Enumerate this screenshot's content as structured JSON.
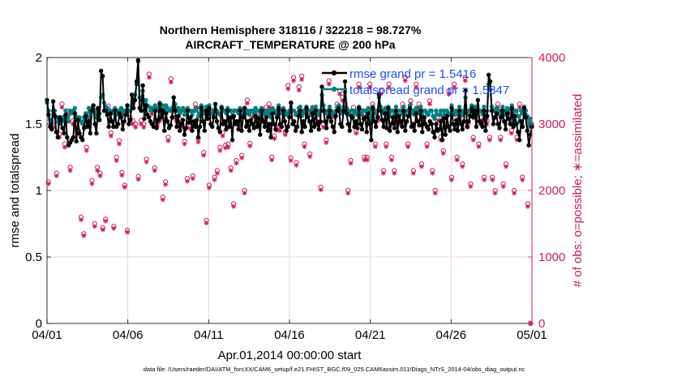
{
  "chart_data": {
    "type": "line",
    "title_line1": "Northern Hemisphere 318116 / 322218 = 98.727%",
    "title_line2": "AIRCRAFT_TEMPERATURE @ 200 hPa",
    "xlabel": "Apr.01,2014 00:00:00 start",
    "ylabel_left": "rmse and totalspread",
    "ylabel_right": "# of obs: o=possible; ∗=assimilated",
    "footer": "data file: /Users/raeder/DAI/ATM_forcXX/CAM6_setup/f.e21.FHIST_BGC.f09_025.CAM6assim.011/Diags_NTrS_2014-04/obs_diag_output.nc",
    "xlim": [
      0,
      30
    ],
    "ylim_left": [
      0,
      2
    ],
    "ylim_right": [
      0,
      4000
    ],
    "x_ticks": [
      {
        "v": 0,
        "label": "04/01"
      },
      {
        "v": 5,
        "label": "04/06"
      },
      {
        "v": 10,
        "label": "04/11"
      },
      {
        "v": 15,
        "label": "04/16"
      },
      {
        "v": 20,
        "label": "04/21"
      },
      {
        "v": 25,
        "label": "04/26"
      },
      {
        "v": 30,
        "label": "05/01"
      }
    ],
    "y_ticks_left": [
      {
        "v": 0,
        "label": "0"
      },
      {
        "v": 0.5,
        "label": "0.5"
      },
      {
        "v": 1,
        "label": "1"
      },
      {
        "v": 1.5,
        "label": "1.5"
      },
      {
        "v": 2,
        "label": "2"
      }
    ],
    "y_ticks_right": [
      {
        "v": 0,
        "label": "0"
      },
      {
        "v": 1000,
        "label": "1000"
      },
      {
        "v": 2000,
        "label": "2000"
      },
      {
        "v": 3000,
        "label": "3000"
      },
      {
        "v": 4000,
        "label": "4000"
      }
    ],
    "legend": [
      {
        "name": "rmse grand pr = 1.5416",
        "color": "#000000"
      },
      {
        "name": "totalspread grand pr = 1.5847",
        "color": "#008080"
      }
    ],
    "legend_text_color": "#1f4ff0",
    "colors": {
      "rmse": "#000000",
      "spread": "#008080",
      "obs": "#cc1a5c",
      "grid": "#e8c8d0"
    },
    "rmse": [
      1.68,
      1.57,
      1.48,
      1.46,
      1.67,
      1.56,
      1.44,
      1.4,
      1.55,
      1.53,
      1.47,
      1.43,
      1.57,
      1.4,
      1.34,
      1.36,
      1.38,
      1.4,
      1.58,
      1.37,
      1.53,
      1.43,
      1.4,
      1.38,
      1.47,
      1.56,
      1.48,
      1.52,
      1.43,
      1.6,
      1.64,
      1.5,
      1.43,
      1.62,
      1.53,
      1.9,
      1.86,
      1.6,
      1.6,
      1.57,
      1.48,
      1.58,
      1.52,
      1.48,
      1.6,
      1.48,
      1.5,
      1.58,
      1.55,
      1.46,
      1.52,
      1.57,
      1.64,
      1.5,
      1.53,
      1.72,
      1.62,
      1.68,
      1.82,
      1.98,
      1.62,
      1.6,
      1.79,
      1.54,
      1.64,
      1.57,
      1.55,
      1.52,
      1.5,
      1.48,
      1.6,
      1.47,
      1.53,
      1.65,
      1.55,
      1.6,
      1.45,
      1.58,
      1.52,
      1.47,
      1.49,
      1.55,
      1.7,
      1.6,
      1.48,
      1.56,
      1.45,
      1.5,
      1.53,
      1.42,
      1.47,
      1.6,
      1.51,
      1.55,
      1.45,
      1.52,
      1.48,
      1.53,
      1.4,
      1.48,
      1.62,
      1.52,
      1.45,
      1.6,
      1.54,
      1.62,
      1.5,
      1.48,
      1.55,
      1.65,
      1.52,
      1.47,
      1.44,
      1.62,
      1.5,
      1.52,
      1.46,
      1.6,
      1.48,
      1.55,
      1.38,
      1.56,
      1.5,
      1.52,
      1.46,
      1.6,
      1.45,
      1.55,
      1.62,
      1.48,
      1.52,
      1.45,
      1.53,
      1.5,
      1.47,
      1.56,
      1.48,
      1.54,
      1.42,
      1.6,
      1.52,
      1.48,
      1.55,
      1.45,
      1.5,
      1.4,
      1.58,
      1.5,
      1.46,
      1.55,
      1.62,
      1.5,
      1.48,
      1.6,
      1.52,
      1.45,
      1.48,
      1.55,
      1.66,
      1.5,
      1.52,
      1.45,
      1.48,
      1.56,
      1.6,
      1.44,
      1.52,
      1.48,
      1.62,
      1.55,
      1.52,
      1.45,
      1.58,
      1.48,
      1.6,
      1.5,
      1.46,
      1.52,
      1.78,
      1.6,
      1.52,
      1.47,
      1.55,
      1.6,
      1.52,
      1.48,
      1.44,
      1.56,
      1.6,
      1.62,
      1.5,
      1.48,
      1.6,
      1.82,
      1.58,
      1.5,
      1.45,
      1.56,
      1.55,
      1.48,
      1.52,
      1.47,
      1.62,
      1.5,
      1.46,
      1.54,
      1.55,
      1.44,
      1.58,
      1.5,
      1.38,
      1.62,
      1.52,
      1.48,
      1.55,
      1.72,
      1.6,
      1.53,
      1.48,
      1.58,
      1.47,
      1.62,
      1.45,
      1.5,
      1.55,
      1.47,
      1.6,
      1.44,
      1.56,
      1.52,
      1.48,
      1.6,
      1.45,
      1.52,
      1.56,
      1.62,
      1.48,
      1.5,
      1.45,
      1.58,
      1.52,
      1.49,
      1.6,
      1.44,
      1.55,
      1.5,
      1.48,
      1.46,
      1.52,
      1.5,
      1.44,
      1.4,
      1.5,
      1.45,
      1.46,
      1.52,
      1.38,
      1.54,
      1.42,
      1.56,
      1.48,
      1.45,
      1.62,
      1.5,
      1.46,
      1.53,
      1.45,
      1.6,
      1.5,
      1.46,
      1.52,
      1.75,
      1.48,
      1.52,
      1.56,
      1.62,
      1.55,
      1.6,
      1.48,
      1.68,
      1.52,
      1.5,
      1.48,
      1.6,
      1.45,
      1.56,
      1.87,
      1.82,
      1.6,
      1.5,
      1.55,
      1.58,
      1.5,
      1.47,
      1.55,
      1.6,
      1.52,
      1.46,
      1.58,
      1.54,
      1.5,
      1.62,
      1.48,
      1.56,
      1.5,
      1.44,
      1.38,
      1.52,
      1.48,
      1.62,
      1.55,
      1.45,
      1.34,
      1.42,
      1.48
    ],
    "spread": [
      1.66,
      1.6,
      1.53,
      1.5,
      1.6,
      1.6,
      1.55,
      1.52,
      1.5,
      1.55,
      1.55,
      1.52,
      1.6,
      1.55,
      1.52,
      1.6,
      1.58,
      1.6,
      1.62,
      1.55,
      1.55,
      1.55,
      1.52,
      1.5,
      1.55,
      1.58,
      1.55,
      1.62,
      1.55,
      1.62,
      1.64,
      1.6,
      1.55,
      1.62,
      1.58,
      1.7,
      1.72,
      1.66,
      1.63,
      1.62,
      1.58,
      1.6,
      1.58,
      1.6,
      1.62,
      1.57,
      1.6,
      1.6,
      1.62,
      1.57,
      1.6,
      1.6,
      1.64,
      1.6,
      1.6,
      1.72,
      1.7,
      1.72,
      1.8,
      1.97,
      1.7,
      1.68,
      1.75,
      1.65,
      1.68,
      1.64,
      1.63,
      1.6,
      1.62,
      1.6,
      1.64,
      1.6,
      1.62,
      1.66,
      1.62,
      1.64,
      1.6,
      1.64,
      1.62,
      1.6,
      1.6,
      1.62,
      1.7,
      1.65,
      1.6,
      1.62,
      1.58,
      1.6,
      1.62,
      1.57,
      1.6,
      1.62,
      1.6,
      1.6,
      1.57,
      1.6,
      1.6,
      1.62,
      1.56,
      1.58,
      1.64,
      1.6,
      1.58,
      1.63,
      1.6,
      1.64,
      1.6,
      1.58,
      1.6,
      1.65,
      1.6,
      1.58,
      1.57,
      1.63,
      1.6,
      1.6,
      1.58,
      1.62,
      1.6,
      1.6,
      1.55,
      1.6,
      1.6,
      1.6,
      1.58,
      1.62,
      1.57,
      1.6,
      1.62,
      1.58,
      1.6,
      1.57,
      1.6,
      1.6,
      1.58,
      1.62,
      1.6,
      1.6,
      1.56,
      1.62,
      1.6,
      1.58,
      1.6,
      1.57,
      1.6,
      1.55,
      1.62,
      1.6,
      1.58,
      1.6,
      1.64,
      1.6,
      1.58,
      1.62,
      1.6,
      1.57,
      1.58,
      1.6,
      1.66,
      1.6,
      1.6,
      1.57,
      1.58,
      1.62,
      1.63,
      1.56,
      1.6,
      1.58,
      1.63,
      1.6,
      1.6,
      1.57,
      1.62,
      1.58,
      1.63,
      1.6,
      1.57,
      1.6,
      1.72,
      1.64,
      1.6,
      1.58,
      1.6,
      1.63,
      1.6,
      1.58,
      1.56,
      1.6,
      1.63,
      1.64,
      1.6,
      1.58,
      1.63,
      1.74,
      1.62,
      1.6,
      1.57,
      1.6,
      1.6,
      1.58,
      1.6,
      1.57,
      1.63,
      1.6,
      1.57,
      1.6,
      1.6,
      1.56,
      1.62,
      1.6,
      1.52,
      1.63,
      1.6,
      1.58,
      1.6,
      1.7,
      1.63,
      1.6,
      1.58,
      1.62,
      1.57,
      1.63,
      1.56,
      1.6,
      1.6,
      1.57,
      1.63,
      1.56,
      1.6,
      1.6,
      1.58,
      1.63,
      1.57,
      1.6,
      1.6,
      1.64,
      1.58,
      1.6,
      1.57,
      1.62,
      1.6,
      1.58,
      1.63,
      1.56,
      1.6,
      1.6,
      1.58,
      1.57,
      1.6,
      1.6,
      1.56,
      1.54,
      1.6,
      1.57,
      1.57,
      1.6,
      1.53,
      1.6,
      1.55,
      1.6,
      1.58,
      1.57,
      1.64,
      1.6,
      1.57,
      1.6,
      1.57,
      1.63,
      1.6,
      1.57,
      1.6,
      1.7,
      1.58,
      1.6,
      1.6,
      1.64,
      1.6,
      1.63,
      1.58,
      1.68,
      1.6,
      1.6,
      1.58,
      1.63,
      1.56,
      1.6,
      1.8,
      1.76,
      1.63,
      1.6,
      1.6,
      1.62,
      1.6,
      1.57,
      1.6,
      1.63,
      1.6,
      1.57,
      1.62,
      1.6,
      1.6,
      1.64,
      1.58,
      1.6,
      1.6,
      1.56,
      1.52,
      1.6,
      1.58,
      1.63,
      1.6,
      1.56,
      1.48,
      1.54,
      1.5
    ],
    "obs_possible": [
      2130,
      3050,
      2990,
      2260,
      2850,
      3300,
      2700,
      3200,
      2350,
      3050,
      3100,
      2900,
      1600,
      1350,
      2650,
      3150,
      2150,
      1500,
      2350,
      2260,
      1440,
      1570,
      3270,
      2870,
      1460,
      2500,
      2750,
      2270,
      2080,
      1400,
      3100,
      3050,
      3000,
      2210,
      3050,
      3000,
      2470,
      3750,
      3200,
      2340,
      3020,
      3100,
      1900,
      2130,
      2800,
      3680,
      3150,
      3100,
      3080,
      3000,
      2740,
      2180,
      2980,
      2220,
      3300,
      2780,
      3250,
      2570,
      1550,
      2080,
      3200,
      2200,
      2300,
      2650,
      2870,
      2680,
      2700,
      2340,
      1800,
      2450,
      3020,
      2530,
      2000,
      3360,
      2710,
      3150,
      3200,
      3150,
      3100,
      3100,
      3250,
      3300,
      2500,
      2820,
      2950,
      2950,
      3210,
      2880,
      3580,
      2490,
      3700,
      2420,
      3560,
      3720,
      2700,
      3200,
      2550,
      3250,
      3050,
      3080,
      2050,
      3000,
      2760,
      3650,
      3150,
      3150,
      3300,
      3500,
      3400,
      3300,
      2000,
      2450,
      3250,
      2900,
      3600,
      3200,
      2500,
      2500,
      3600,
      3300,
      2700,
      3100,
      3500,
      2300,
      2700,
      3600,
      2500,
      2300,
      3050,
      3050,
      3300,
      3700,
      2700,
      3350,
      2300,
      3600,
      3300,
      2400,
      3100,
      2700,
      3350,
      2300,
      2000,
      3100,
      2800,
      2600,
      3000,
      3500,
      2200,
      3600,
      2500,
      3100,
      2400,
      3700,
      3000,
      2100,
      2800,
      3200,
      2700,
      3100,
      2200,
      3050,
      2800,
      2200,
      2000,
      3300,
      2800,
      2100,
      2400,
      3200,
      2900,
      2000,
      2800,
      3300,
      2200,
      3200,
      1800,
      0
    ],
    "obs_assimilated": [
      2100,
      3000,
      2950,
      2220,
      2800,
      3250,
      2650,
      3150,
      2300,
      3000,
      3050,
      2850,
      1560,
      1320,
      2600,
      3100,
      2100,
      1460,
      2300,
      2220,
      1410,
      1540,
      3220,
      2820,
      1430,
      2450,
      2700,
      2230,
      2050,
      1370,
      3050,
      3000,
      2950,
      2170,
      3000,
      2950,
      2430,
      3700,
      3150,
      2300,
      2970,
      3050,
      1860,
      2090,
      2750,
      3630,
      3100,
      3050,
      3030,
      2950,
      2700,
      2140,
      2930,
      2180,
      3250,
      2730,
      3200,
      2530,
      1510,
      2040,
      3150,
      2160,
      2260,
      2600,
      2820,
      2640,
      2650,
      2300,
      1760,
      2410,
      2970,
      2490,
      1960,
      3310,
      2670,
      3100,
      3150,
      3100,
      3050,
      3050,
      3200,
      3250,
      2460,
      2780,
      2900,
      2900,
      3160,
      2840,
      3530,
      2450,
      3650,
      2380,
      3510,
      3670,
      2660,
      3150,
      2510,
      3200,
      3000,
      3030,
      2010,
      2950,
      2720,
      3600,
      3100,
      3100,
      3250,
      3450,
      3350,
      3250,
      1960,
      2410,
      3200,
      2860,
      3550,
      3150,
      2460,
      2460,
      3550,
      3250,
      2660,
      3050,
      3450,
      2260,
      2660,
      3550,
      2460,
      2260,
      3000,
      3000,
      3250,
      3650,
      2660,
      3300,
      2260,
      3550,
      3250,
      2360,
      3050,
      2660,
      3300,
      2260,
      1960,
      3050,
      2760,
      2560,
      2950,
      3450,
      2160,
      3550,
      2460,
      3050,
      2360,
      3650,
      2950,
      2060,
      2760,
      3150,
      2660,
      3050,
      2160,
      3000,
      2760,
      2160,
      1960,
      3250,
      2760,
      2060,
      2360,
      3150,
      2860,
      1960,
      2760,
      3250,
      2160,
      3150,
      1760,
      0
    ]
  }
}
